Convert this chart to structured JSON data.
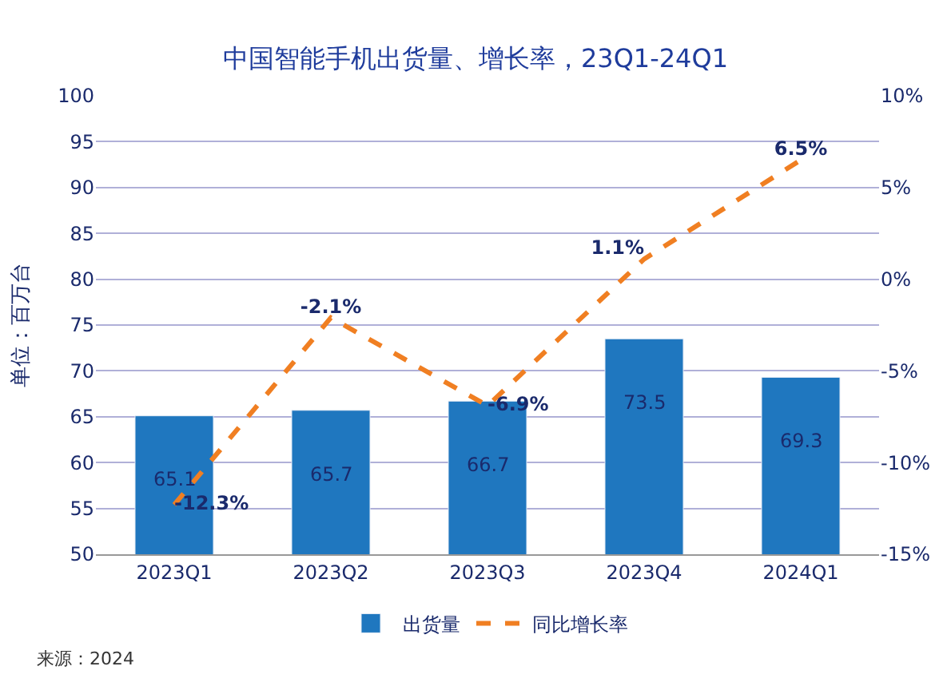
{
  "chart_data": {
    "type": "bar",
    "title": "中国智能手机出货量、增长率，23Q1-24Q1",
    "ylabel": "单位：百万台",
    "categories": [
      "2023Q1",
      "2023Q2",
      "2023Q3",
      "2023Q4",
      "2024Q1"
    ],
    "series": [
      {
        "name": "出货量",
        "color": "#1f77bf",
        "values": [
          65.1,
          65.7,
          66.7,
          73.5,
          69.3
        ],
        "value_labels": [
          "65.1",
          "65.7",
          "66.7",
          "73.5",
          "69.3"
        ]
      },
      {
        "name": "同比增长率",
        "type": "line",
        "axis": "y2",
        "color": "#f07f22",
        "line_style": "dashed",
        "values": [
          -12.3,
          -2.1,
          -6.9,
          1.1,
          6.5
        ],
        "value_labels": [
          "-12.3%",
          "-2.1%",
          "-6.9%",
          "1.1%",
          "6.5%"
        ]
      }
    ],
    "ylim": [
      50,
      100
    ],
    "yticks": [
      50,
      55,
      60,
      65,
      70,
      75,
      80,
      85,
      90,
      95,
      100
    ],
    "y2lim": [
      -15,
      10
    ],
    "y2ticks": [
      {
        "value": -15,
        "label": "-15%"
      },
      {
        "value": -10,
        "label": "-10%"
      },
      {
        "value": -5,
        "label": "-5%"
      },
      {
        "value": 0,
        "label": "0%"
      },
      {
        "value": 5,
        "label": "5%"
      },
      {
        "value": 10,
        "label": "10%"
      }
    ],
    "grid": "y",
    "legend": "bottom",
    "annotations": [
      "来源：2024"
    ]
  }
}
